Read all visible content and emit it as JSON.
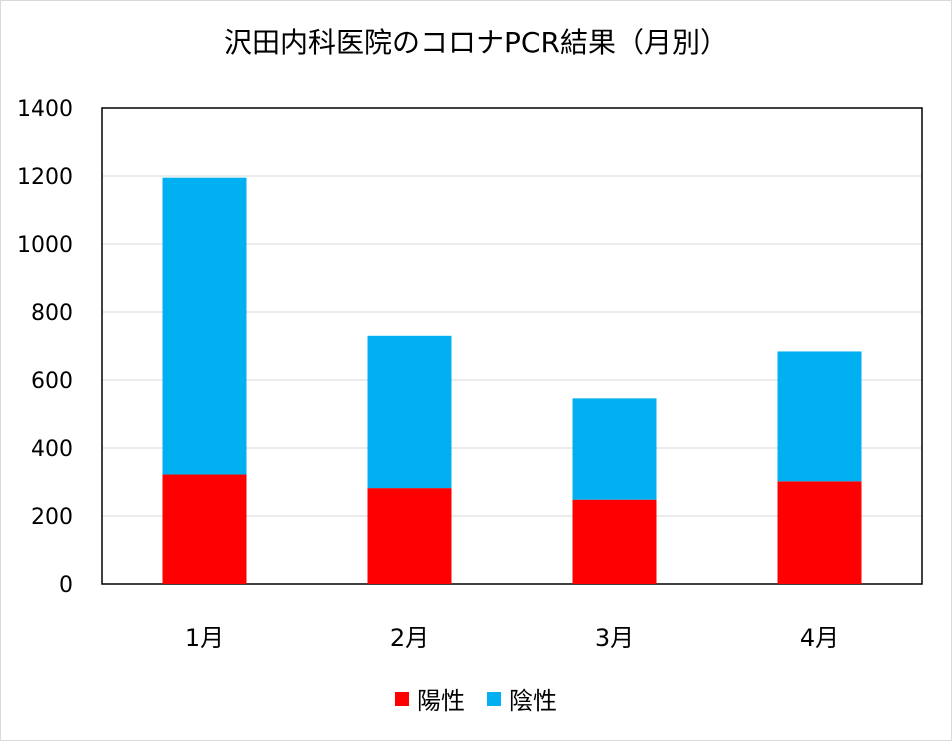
{
  "chart_data": {
    "type": "bar",
    "stacked": true,
    "title": "沢田内科医院のコロナPCR結果（月別）",
    "categories": [
      "1月",
      "2月",
      "3月",
      "4月"
    ],
    "series": [
      {
        "name": "陽性",
        "color": "#ff0000",
        "values": [
          322,
          282,
          248,
          302
        ]
      },
      {
        "name": "陰性",
        "color": "#00b0f0",
        "values": [
          873,
          448,
          298,
          382
        ]
      }
    ],
    "ylim": [
      0,
      1400
    ],
    "yticks": [
      0,
      200,
      400,
      600,
      800,
      1000,
      1200,
      1400
    ],
    "grid": true,
    "legend_position": "bottom",
    "xlabel": "",
    "ylabel": ""
  }
}
